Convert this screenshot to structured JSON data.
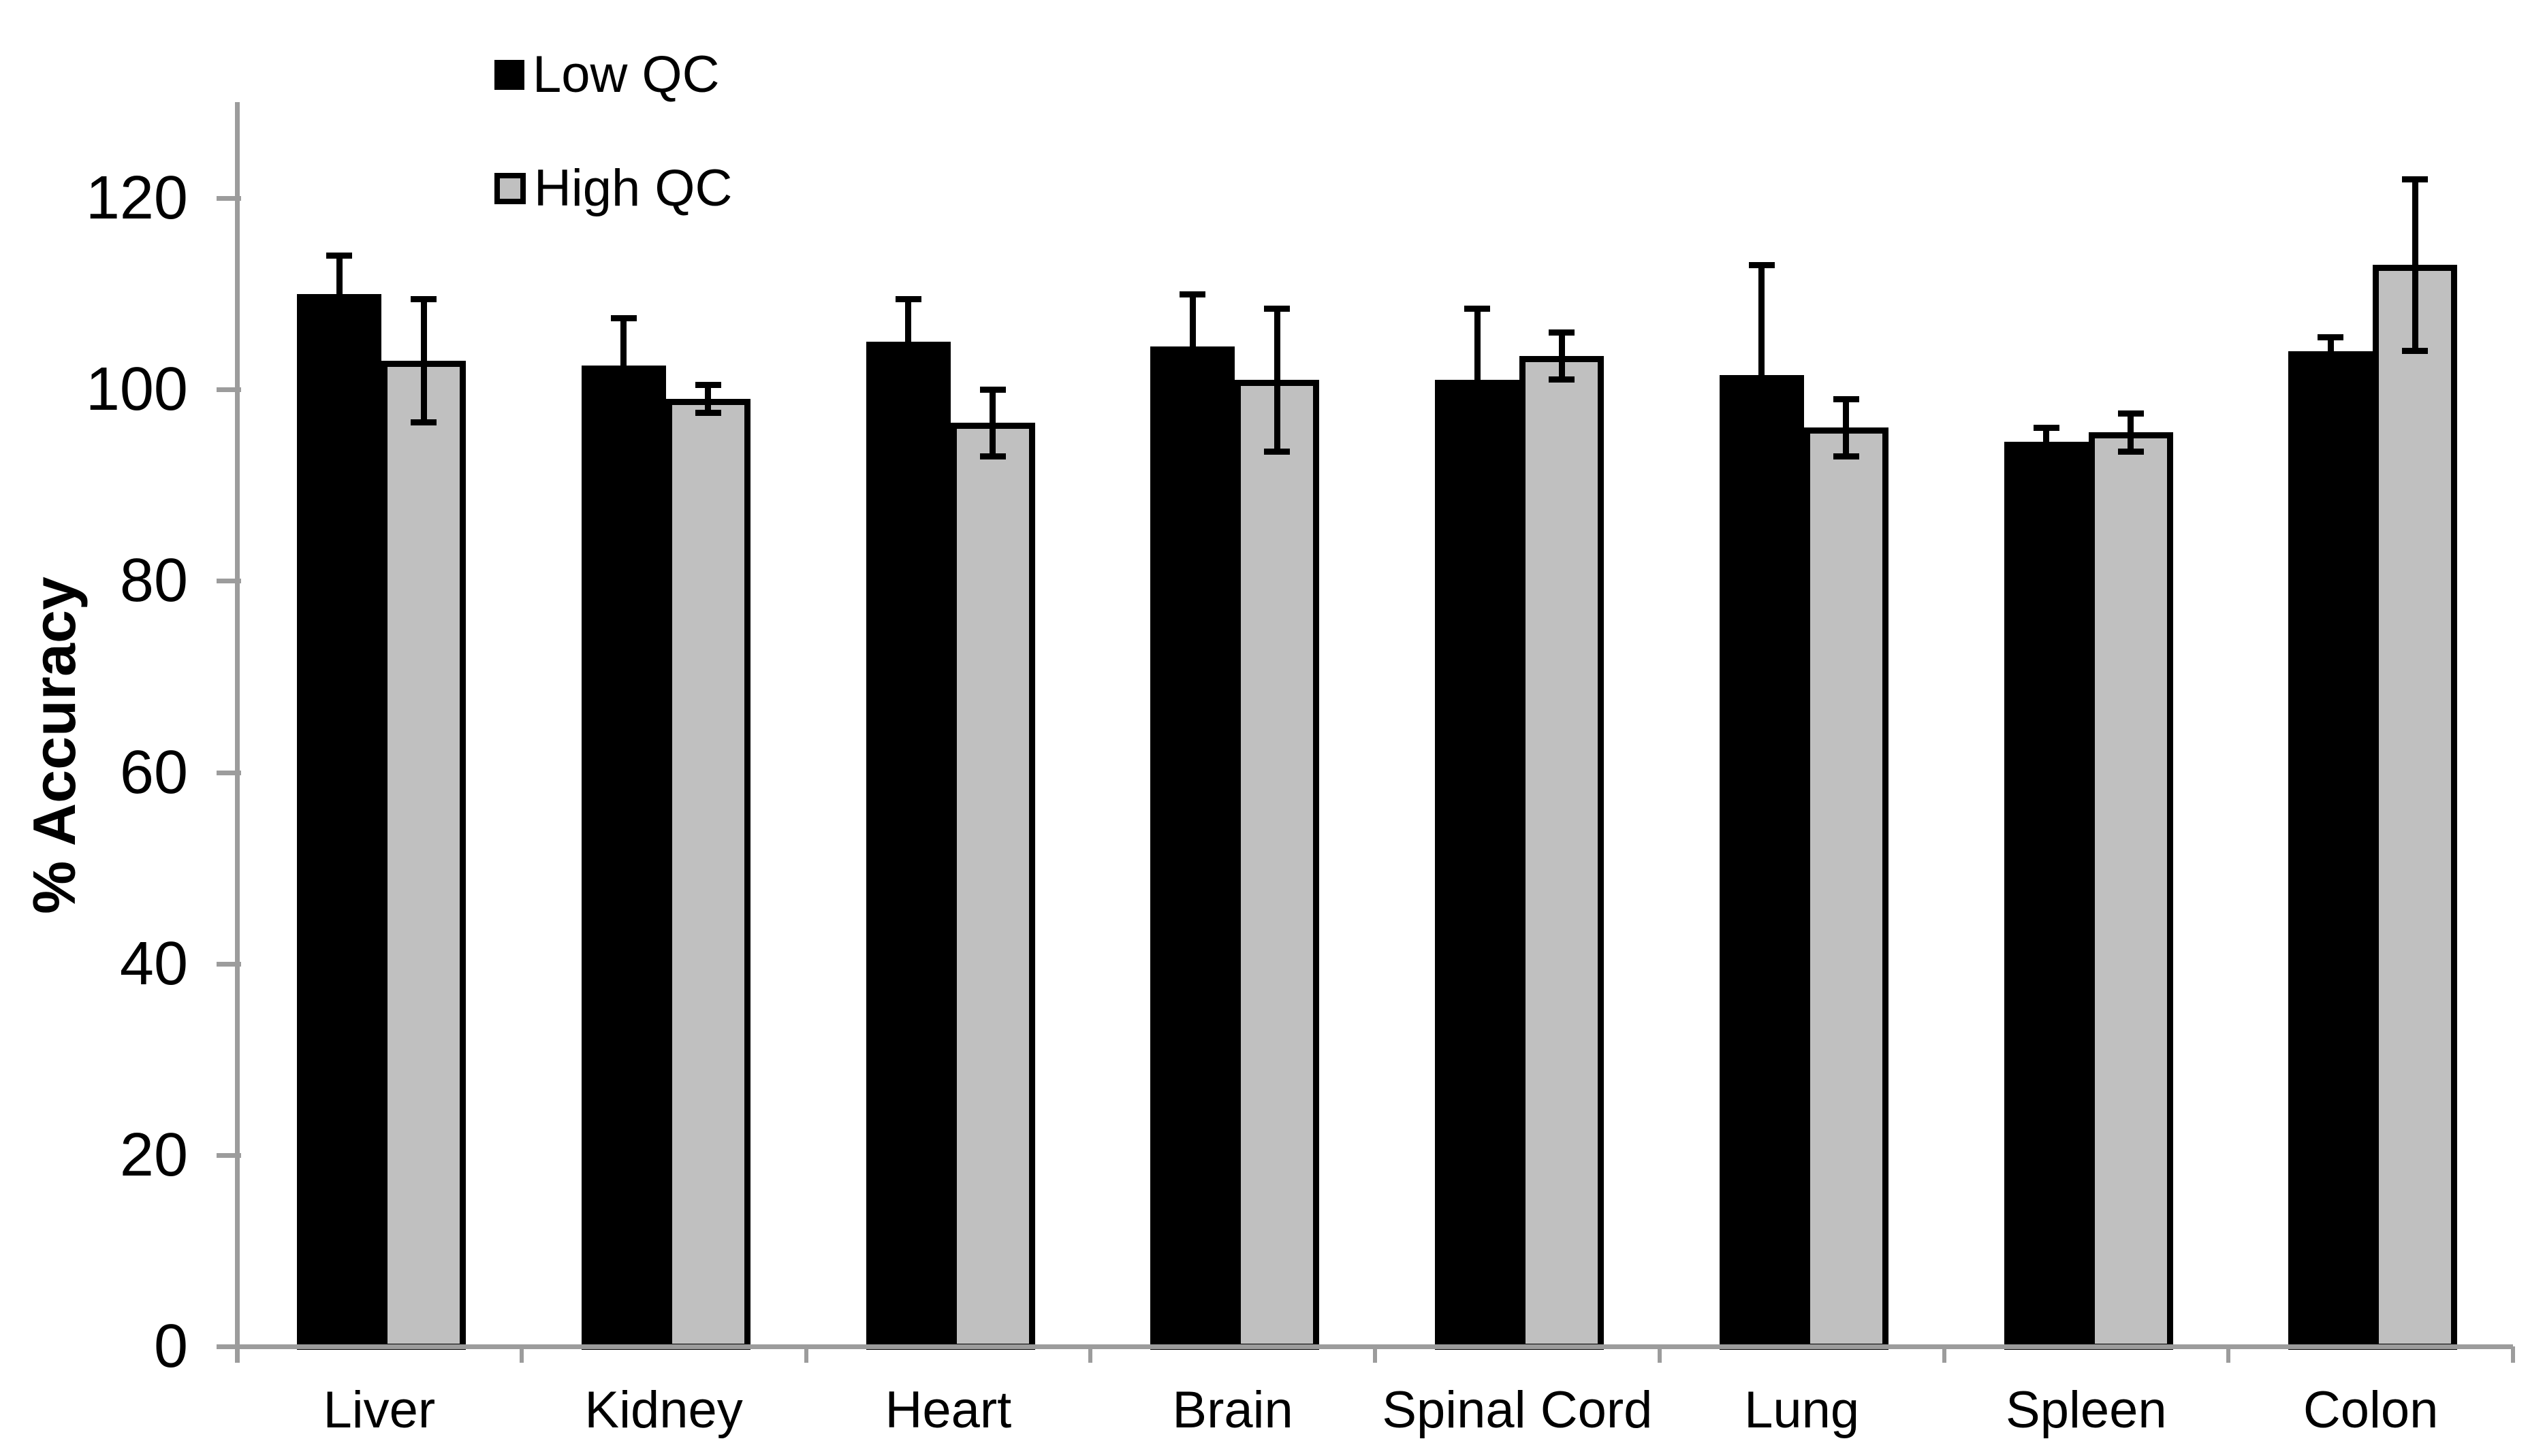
{
  "chart_data": {
    "type": "bar",
    "title": "",
    "xlabel": "",
    "ylabel": "% Accuracy",
    "categories": [
      "Liver",
      "Kidney",
      "Heart",
      "Brain",
      "Spinal Cord",
      "Lung",
      "Spleen",
      "Colon"
    ],
    "series": [
      {
        "name": "Low QC",
        "color": "#000000",
        "values": [
          110,
          102.5,
          105,
          104.5,
          101,
          101.5,
          94.5,
          104
        ],
        "errors": [
          4,
          5,
          4.5,
          5.5,
          7.5,
          11.5,
          1.5,
          1.5
        ]
      },
      {
        "name": "High QC",
        "color": "#c0c0c0",
        "values": [
          103,
          99,
          96.5,
          101,
          103.5,
          96,
          95.5,
          113
        ],
        "errors": [
          6.5,
          1.5,
          3.5,
          7.5,
          2.5,
          3,
          2,
          9
        ]
      }
    ],
    "ylim": [
      0,
      130
    ],
    "yticks": [
      0,
      20,
      40,
      60,
      80,
      100,
      120
    ],
    "grid": false,
    "legend_position": "top-left",
    "error_bars": true,
    "axis_color": "#9c9c9c"
  }
}
